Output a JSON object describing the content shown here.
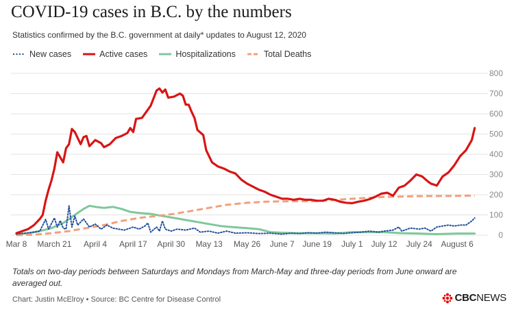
{
  "header": {
    "title": "COVID-19 cases in B.C. by the numbers",
    "subtitle": "Statistics confirmed by the B.C. government at daily* updates to August 12, 2020"
  },
  "footer": {
    "note": "Totals on two-day periods between Saturdays and Mondays from March-May and three-day periods from June onward are averaged out.",
    "credit": "Chart: Justin McElroy • Source: BC Centre for Disease Control",
    "logo_text": "CBC",
    "logo_text_news": "NEWS"
  },
  "chart_data": {
    "type": "line",
    "x_start": "2020-03-08",
    "x_tick_labels": [
      "Mar 8",
      "March 21",
      "April 4",
      "April 17",
      "April 30",
      "May 13",
      "May 26",
      "June 7",
      "June 19",
      "July 1",
      "July 12",
      "July 24",
      "August 6"
    ],
    "x_tick_dates": [
      "2020-03-08",
      "2020-03-21",
      "2020-04-04",
      "2020-04-17",
      "2020-04-30",
      "2020-05-13",
      "2020-05-26",
      "2020-06-07",
      "2020-06-19",
      "2020-07-01",
      "2020-07-12",
      "2020-07-24",
      "2020-08-06"
    ],
    "ylim": [
      0,
      800
    ],
    "y_ticks": [
      0,
      100,
      200,
      300,
      400,
      500,
      600,
      700,
      800
    ],
    "grid": true,
    "legend_position": "top-left",
    "series": [
      {
        "name": "New cases",
        "color": "#1f4e9c",
        "style": "dotted",
        "points": [
          [
            "2020-03-08",
            5
          ],
          [
            "2020-03-11",
            10
          ],
          [
            "2020-03-14",
            15
          ],
          [
            "2020-03-16",
            20
          ],
          [
            "2020-03-18",
            78
          ],
          [
            "2020-03-19",
            30
          ],
          [
            "2020-03-21",
            85
          ],
          [
            "2020-03-22",
            40
          ],
          [
            "2020-03-23",
            72
          ],
          [
            "2020-03-24",
            35
          ],
          [
            "2020-03-25",
            30
          ],
          [
            "2020-03-26",
            145
          ],
          [
            "2020-03-27",
            40
          ],
          [
            "2020-03-28",
            95
          ],
          [
            "2020-03-29",
            50
          ],
          [
            "2020-03-31",
            80
          ],
          [
            "2020-04-02",
            40
          ],
          [
            "2020-04-04",
            55
          ],
          [
            "2020-04-06",
            30
          ],
          [
            "2020-04-08",
            50
          ],
          [
            "2020-04-10",
            35
          ],
          [
            "2020-04-12",
            30
          ],
          [
            "2020-04-14",
            25
          ],
          [
            "2020-04-17",
            40
          ],
          [
            "2020-04-19",
            30
          ],
          [
            "2020-04-21",
            45
          ],
          [
            "2020-04-22",
            60
          ],
          [
            "2020-04-23",
            15
          ],
          [
            "2020-04-25",
            40
          ],
          [
            "2020-04-26",
            20
          ],
          [
            "2020-04-27",
            70
          ],
          [
            "2020-04-28",
            30
          ],
          [
            "2020-04-30",
            20
          ],
          [
            "2020-05-02",
            30
          ],
          [
            "2020-05-05",
            25
          ],
          [
            "2020-05-08",
            35
          ],
          [
            "2020-05-10",
            15
          ],
          [
            "2020-05-13",
            20
          ],
          [
            "2020-05-16",
            10
          ],
          [
            "2020-05-19",
            20
          ],
          [
            "2020-05-22",
            10
          ],
          [
            "2020-05-26",
            12
          ],
          [
            "2020-05-30",
            8
          ],
          [
            "2020-06-03",
            10
          ],
          [
            "2020-06-07",
            5
          ],
          [
            "2020-06-10",
            10
          ],
          [
            "2020-06-13",
            8
          ],
          [
            "2020-06-16",
            12
          ],
          [
            "2020-06-19",
            10
          ],
          [
            "2020-06-22",
            15
          ],
          [
            "2020-06-25",
            12
          ],
          [
            "2020-06-28",
            8
          ],
          [
            "2020-07-01",
            12
          ],
          [
            "2020-07-04",
            15
          ],
          [
            "2020-07-07",
            20
          ],
          [
            "2020-07-10",
            15
          ],
          [
            "2020-07-12",
            20
          ],
          [
            "2020-07-15",
            25
          ],
          [
            "2020-07-17",
            40
          ],
          [
            "2020-07-18",
            20
          ],
          [
            "2020-07-21",
            35
          ],
          [
            "2020-07-24",
            30
          ],
          [
            "2020-07-26",
            35
          ],
          [
            "2020-07-28",
            20
          ],
          [
            "2020-07-30",
            40
          ],
          [
            "2020-08-01",
            45
          ],
          [
            "2020-08-03",
            50
          ],
          [
            "2020-08-05",
            45
          ],
          [
            "2020-08-07",
            50
          ],
          [
            "2020-08-09",
            50
          ],
          [
            "2020-08-11",
            70
          ],
          [
            "2020-08-12",
            85
          ]
        ]
      },
      {
        "name": "Active cases",
        "color": "#d81414",
        "style": "solid",
        "points": [
          [
            "2020-03-08",
            10
          ],
          [
            "2020-03-10",
            20
          ],
          [
            "2020-03-12",
            30
          ],
          [
            "2020-03-14",
            50
          ],
          [
            "2020-03-16",
            80
          ],
          [
            "2020-03-17",
            100
          ],
          [
            "2020-03-18",
            170
          ],
          [
            "2020-03-19",
            225
          ],
          [
            "2020-03-20",
            270
          ],
          [
            "2020-03-21",
            330
          ],
          [
            "2020-03-22",
            410
          ],
          [
            "2020-03-24",
            360
          ],
          [
            "2020-03-25",
            430
          ],
          [
            "2020-03-26",
            450
          ],
          [
            "2020-03-27",
            525
          ],
          [
            "2020-03-28",
            510
          ],
          [
            "2020-03-30",
            450
          ],
          [
            "2020-03-31",
            485
          ],
          [
            "2020-04-01",
            490
          ],
          [
            "2020-04-02",
            440
          ],
          [
            "2020-04-04",
            470
          ],
          [
            "2020-04-06",
            455
          ],
          [
            "2020-04-07",
            435
          ],
          [
            "2020-04-09",
            450
          ],
          [
            "2020-04-11",
            480
          ],
          [
            "2020-04-13",
            490
          ],
          [
            "2020-04-15",
            505
          ],
          [
            "2020-04-16",
            530
          ],
          [
            "2020-04-17",
            510
          ],
          [
            "2020-04-18",
            575
          ],
          [
            "2020-04-20",
            580
          ],
          [
            "2020-04-22",
            620
          ],
          [
            "2020-04-23",
            640
          ],
          [
            "2020-04-25",
            715
          ],
          [
            "2020-04-26",
            725
          ],
          [
            "2020-04-27",
            705
          ],
          [
            "2020-04-28",
            720
          ],
          [
            "2020-04-29",
            680
          ],
          [
            "2020-05-01",
            685
          ],
          [
            "2020-05-03",
            700
          ],
          [
            "2020-05-04",
            690
          ],
          [
            "2020-05-05",
            645
          ],
          [
            "2020-05-06",
            645
          ],
          [
            "2020-05-07",
            610
          ],
          [
            "2020-05-08",
            580
          ],
          [
            "2020-05-09",
            520
          ],
          [
            "2020-05-11",
            495
          ],
          [
            "2020-05-12",
            420
          ],
          [
            "2020-05-14",
            360
          ],
          [
            "2020-05-16",
            340
          ],
          [
            "2020-05-18",
            330
          ],
          [
            "2020-05-20",
            315
          ],
          [
            "2020-05-22",
            305
          ],
          [
            "2020-05-24",
            275
          ],
          [
            "2020-05-26",
            255
          ],
          [
            "2020-05-28",
            240
          ],
          [
            "2020-05-30",
            225
          ],
          [
            "2020-06-01",
            215
          ],
          [
            "2020-06-03",
            200
          ],
          [
            "2020-06-05",
            190
          ],
          [
            "2020-06-07",
            180
          ],
          [
            "2020-06-09",
            180
          ],
          [
            "2020-06-11",
            175
          ],
          [
            "2020-06-13",
            180
          ],
          [
            "2020-06-15",
            175
          ],
          [
            "2020-06-17",
            175
          ],
          [
            "2020-06-19",
            170
          ],
          [
            "2020-06-21",
            170
          ],
          [
            "2020-06-23",
            180
          ],
          [
            "2020-06-25",
            175
          ],
          [
            "2020-06-27",
            165
          ],
          [
            "2020-06-29",
            160
          ],
          [
            "2020-07-01",
            158
          ],
          [
            "2020-07-03",
            165
          ],
          [
            "2020-07-05",
            170
          ],
          [
            "2020-07-07",
            178
          ],
          [
            "2020-07-09",
            190
          ],
          [
            "2020-07-11",
            205
          ],
          [
            "2020-07-13",
            210
          ],
          [
            "2020-07-15",
            195
          ],
          [
            "2020-07-17",
            235
          ],
          [
            "2020-07-19",
            245
          ],
          [
            "2020-07-21",
            270
          ],
          [
            "2020-07-23",
            300
          ],
          [
            "2020-07-25",
            290
          ],
          [
            "2020-07-27",
            265
          ],
          [
            "2020-07-28",
            255
          ],
          [
            "2020-07-30",
            245
          ],
          [
            "2020-08-01",
            290
          ],
          [
            "2020-08-03",
            310
          ],
          [
            "2020-08-05",
            345
          ],
          [
            "2020-08-07",
            390
          ],
          [
            "2020-08-09",
            420
          ],
          [
            "2020-08-11",
            470
          ],
          [
            "2020-08-12",
            530
          ]
        ]
      },
      {
        "name": "Hospitalizations",
        "color": "#7ec79c",
        "style": "solid",
        "points": [
          [
            "2020-03-08",
            5
          ],
          [
            "2020-03-12",
            10
          ],
          [
            "2020-03-16",
            20
          ],
          [
            "2020-03-20",
            35
          ],
          [
            "2020-03-24",
            60
          ],
          [
            "2020-03-28",
            100
          ],
          [
            "2020-03-31",
            130
          ],
          [
            "2020-04-02",
            145
          ],
          [
            "2020-04-04",
            140
          ],
          [
            "2020-04-07",
            135
          ],
          [
            "2020-04-10",
            140
          ],
          [
            "2020-04-13",
            130
          ],
          [
            "2020-04-16",
            115
          ],
          [
            "2020-04-19",
            110
          ],
          [
            "2020-04-23",
            105
          ],
          [
            "2020-04-27",
            95
          ],
          [
            "2020-05-01",
            85
          ],
          [
            "2020-05-05",
            75
          ],
          [
            "2020-05-09",
            65
          ],
          [
            "2020-05-13",
            55
          ],
          [
            "2020-05-17",
            45
          ],
          [
            "2020-05-21",
            40
          ],
          [
            "2020-05-26",
            35
          ],
          [
            "2020-05-30",
            30
          ],
          [
            "2020-06-03",
            15
          ],
          [
            "2020-06-07",
            12
          ],
          [
            "2020-06-12",
            10
          ],
          [
            "2020-06-19",
            10
          ],
          [
            "2020-06-25",
            8
          ],
          [
            "2020-07-01",
            15
          ],
          [
            "2020-07-07",
            15
          ],
          [
            "2020-07-12",
            15
          ],
          [
            "2020-07-18",
            10
          ],
          [
            "2020-07-24",
            8
          ],
          [
            "2020-07-30",
            5
          ],
          [
            "2020-08-06",
            8
          ],
          [
            "2020-08-12",
            8
          ]
        ]
      },
      {
        "name": "Total Deaths",
        "color": "#f2a07b",
        "style": "dashed",
        "points": [
          [
            "2020-03-08",
            0
          ],
          [
            "2020-03-14",
            2
          ],
          [
            "2020-03-20",
            10
          ],
          [
            "2020-03-26",
            20
          ],
          [
            "2020-04-01",
            35
          ],
          [
            "2020-04-07",
            50
          ],
          [
            "2020-04-13",
            70
          ],
          [
            "2020-04-19",
            85
          ],
          [
            "2020-04-25",
            95
          ],
          [
            "2020-05-01",
            105
          ],
          [
            "2020-05-07",
            120
          ],
          [
            "2020-05-13",
            135
          ],
          [
            "2020-05-19",
            150
          ],
          [
            "2020-05-26",
            160
          ],
          [
            "2020-06-01",
            165
          ],
          [
            "2020-06-07",
            167
          ],
          [
            "2020-06-19",
            168
          ],
          [
            "2020-07-01",
            180
          ],
          [
            "2020-07-12",
            189
          ],
          [
            "2020-07-24",
            193
          ],
          [
            "2020-08-06",
            194
          ],
          [
            "2020-08-12",
            196
          ]
        ]
      }
    ]
  }
}
